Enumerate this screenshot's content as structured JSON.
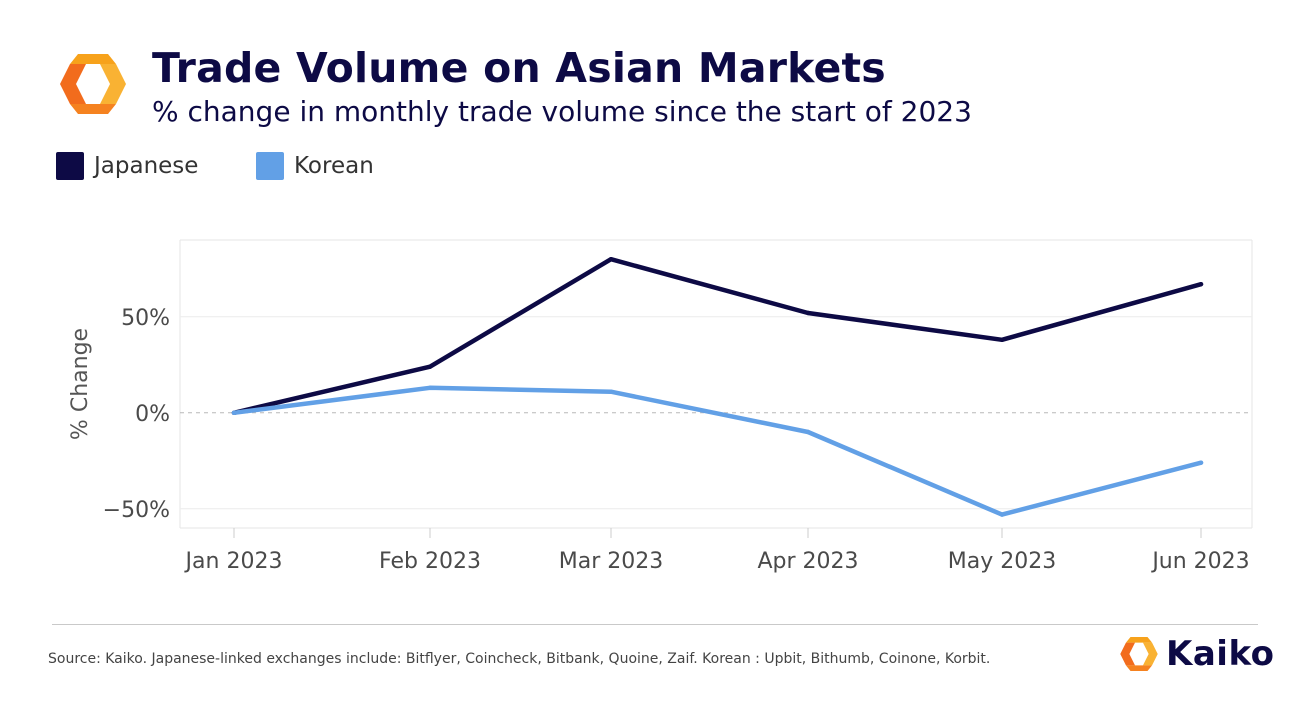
{
  "header": {
    "title": "Trade Volume on Asian Markets",
    "subtitle": "% change in monthly trade volume since the start of 2023"
  },
  "legend": [
    {
      "label": "Japanese",
      "color": "#0d0a45"
    },
    {
      "label": "Korean",
      "color": "#62a0e6"
    }
  ],
  "chart_data": {
    "type": "line",
    "x": [
      "Jan 2023",
      "Feb 2023",
      "Mar 2023",
      "Apr 2023",
      "May 2023",
      "Jun 2023"
    ],
    "series": [
      {
        "name": "Japanese",
        "color": "#0d0a45",
        "values": [
          0,
          24,
          80,
          52,
          38,
          67
        ]
      },
      {
        "name": "Korean",
        "color": "#62a0e6",
        "values": [
          0,
          13,
          11,
          -10,
          -53,
          -26
        ]
      }
    ],
    "ylabel": "% Change",
    "yticks": [
      -50,
      0,
      50
    ],
    "ytick_labels": [
      "−50%",
      "0%",
      "50%"
    ],
    "ylim": [
      -60,
      90
    ],
    "grid": true,
    "zero_line": "dashed",
    "legend_position": "top-left"
  },
  "footer": {
    "source": "Source: Kaiko. Japanese-linked exchanges include: Bitflyer, Coincheck, Bitbank, Quoine, Zaif. Korean : Upbit, Bithumb, Coinone, Korbit.",
    "brand": "Kaiko"
  }
}
